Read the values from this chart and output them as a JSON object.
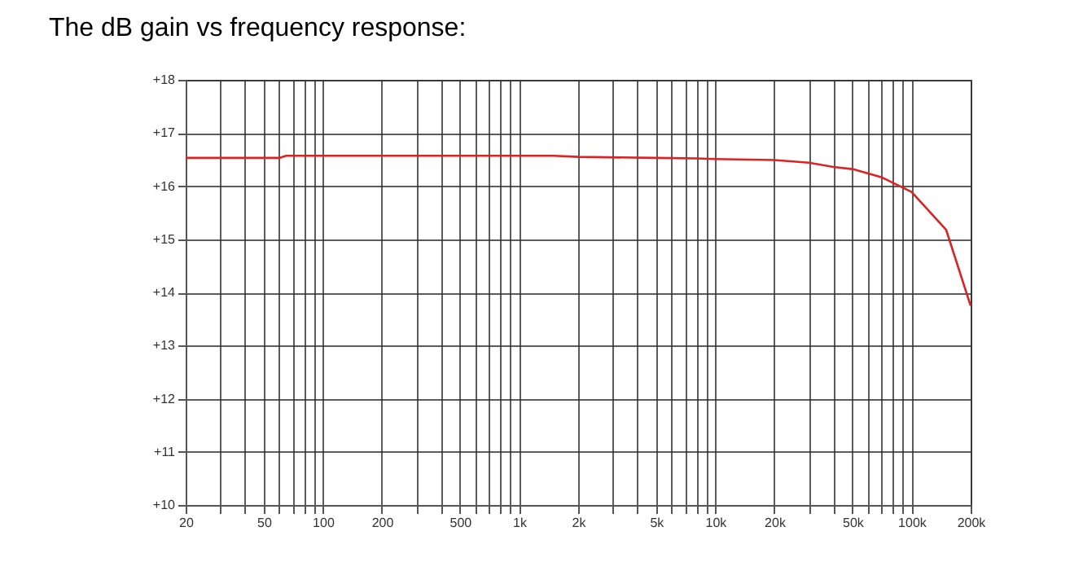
{
  "chart_data": {
    "type": "line",
    "title": "The dB gain vs frequency response:",
    "x": [
      20,
      60,
      65,
      1500,
      2000,
      5000,
      8000,
      10000,
      20000,
      30000,
      40000,
      50000,
      70000,
      100000,
      150000,
      200000
    ],
    "series": [
      {
        "color": "#dd2222",
        "values": [
          16.53,
          16.53,
          16.57,
          16.57,
          16.55,
          16.53,
          16.52,
          16.51,
          16.49,
          16.44,
          16.36,
          16.32,
          16.17,
          15.89,
          15.18,
          13.75
        ]
      }
    ],
    "log": "x",
    "xlim": [
      20,
      200000
    ],
    "ylim": [
      10,
      18
    ],
    "xticks": [
      20,
      {
        "value": 30,
        "label": null
      },
      {
        "value": 40,
        "label": null
      },
      50,
      {
        "value": 60,
        "label": null
      },
      {
        "value": 70,
        "label": null
      },
      {
        "value": 80,
        "label": null
      },
      {
        "value": 90,
        "label": null
      },
      100,
      200,
      {
        "value": 300,
        "label": null
      },
      {
        "value": 400,
        "label": null
      },
      500,
      {
        "value": 600,
        "label": null
      },
      {
        "value": 700,
        "label": null
      },
      {
        "value": 800,
        "label": null
      },
      {
        "value": 900,
        "label": null
      },
      {
        "value": 1000,
        "label": "1k"
      },
      {
        "value": 2000,
        "label": "2k"
      },
      {
        "value": 3000,
        "label": null
      },
      {
        "value": 4000,
        "label": null
      },
      {
        "value": 5000,
        "label": "5k"
      },
      {
        "value": 6000,
        "label": null
      },
      {
        "value": 7000,
        "label": null
      },
      {
        "value": 8000,
        "label": null
      },
      {
        "value": 9000,
        "label": null
      },
      {
        "value": 10000,
        "label": "10k"
      },
      {
        "value": 20000,
        "label": "20k"
      },
      {
        "value": 30000,
        "label": null
      },
      {
        "value": 40000,
        "label": null
      },
      {
        "value": 50000,
        "label": "50k"
      },
      {
        "value": 60000,
        "label": null
      },
      {
        "value": 70000,
        "label": null
      },
      {
        "value": 80000,
        "label": null
      },
      {
        "value": 90000,
        "label": null
      },
      {
        "value": 100000,
        "label": "100k"
      },
      {
        "value": 200000,
        "label": "200k"
      }
    ],
    "yticks": [
      {
        "value": 10,
        "label": "+10"
      },
      {
        "value": 11,
        "label": "+11"
      },
      {
        "value": 12,
        "label": "+12"
      },
      {
        "value": 13,
        "label": "+13"
      },
      {
        "value": 14,
        "label": "+14"
      },
      {
        "value": 15,
        "label": "+15"
      },
      {
        "value": 16,
        "label": "+16"
      },
      {
        "value": 17,
        "label": "+17"
      },
      {
        "value": 18,
        "label": "+18"
      }
    ],
    "grid": true,
    "marker": "none",
    "line_style": "solid"
  }
}
